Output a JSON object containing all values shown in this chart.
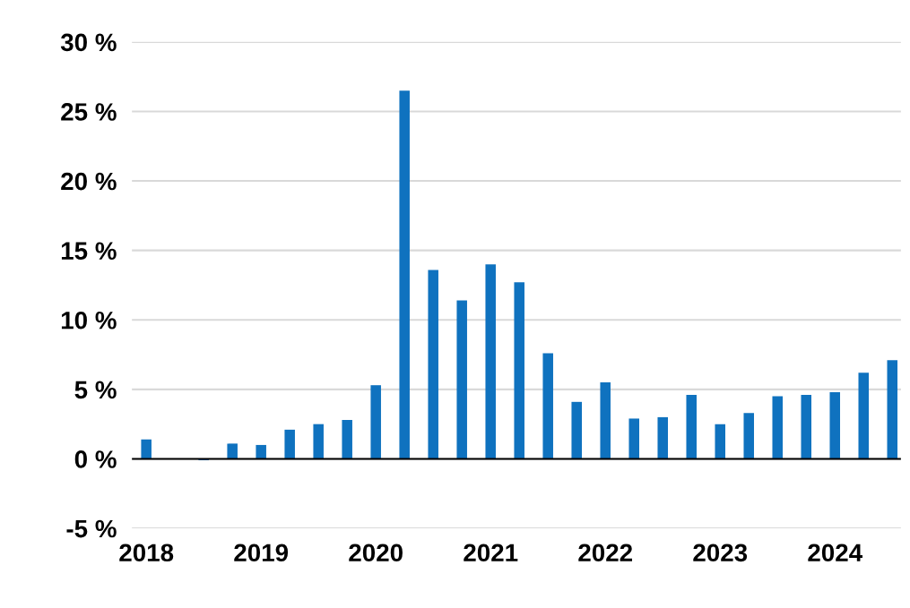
{
  "chart_data": {
    "type": "bar",
    "color": "#0f72bf",
    "categories": [
      "2018",
      null,
      null,
      null,
      "2019",
      null,
      null,
      null,
      "2020",
      null,
      null,
      null,
      "2021",
      null,
      null,
      null,
      "2022",
      null,
      null,
      null,
      "2023",
      null,
      null,
      null,
      "2024",
      null,
      null
    ],
    "values": [
      1.4,
      0,
      -0.1,
      1.1,
      1.0,
      2.1,
      2.5,
      2.8,
      5.3,
      26.5,
      13.6,
      11.4,
      14.0,
      12.7,
      7.6,
      4.1,
      5.5,
      2.9,
      3.0,
      4.6,
      2.5,
      3.3,
      4.5,
      4.6,
      4.8,
      6.2,
      7.1
    ],
    "ylim": [
      -5,
      30
    ],
    "yticks": [
      {
        "value": -5,
        "label": "-5 %"
      },
      {
        "value": 0,
        "label": "0 %"
      },
      {
        "value": 5,
        "label": "5 %"
      },
      {
        "value": 10,
        "label": "10 %"
      },
      {
        "value": 15,
        "label": "15 %"
      },
      {
        "value": 20,
        "label": "20 %"
      },
      {
        "value": 25,
        "label": "25 %"
      },
      {
        "value": 30,
        "label": "30 %"
      }
    ],
    "grid": "y",
    "legend": false
  }
}
